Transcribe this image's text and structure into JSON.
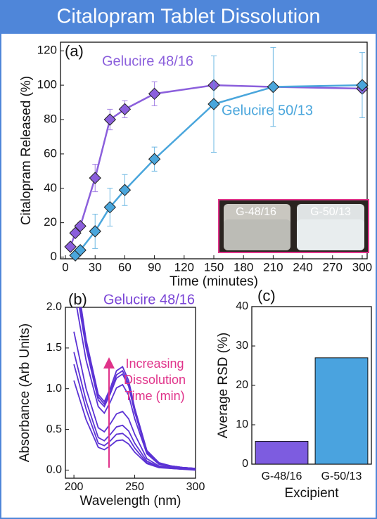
{
  "figure_title": "Citalopram Tablet Dissolution",
  "chart_data": [
    {
      "type": "line",
      "panel_label": "(a)",
      "x_label": "Time (minutes)",
      "y_label": "Citalopram Released (%)",
      "xlim": [
        -5,
        305
      ],
      "xticks": [
        0,
        30,
        60,
        90,
        120,
        150,
        180,
        210,
        240,
        270,
        300
      ],
      "ylim": [
        -1,
        125
      ],
      "yticks": [
        0,
        20,
        40,
        60,
        80,
        100,
        120
      ],
      "marker": "diamond",
      "series": [
        {
          "name": "Gelucire 48/16",
          "color": "#8b5fdc",
          "x": [
            5,
            10,
            15,
            30,
            45,
            60,
            90,
            150,
            210,
            300
          ],
          "values": [
            6,
            14,
            18,
            46,
            80,
            86,
            95,
            100,
            99,
            98
          ],
          "errors": [
            1,
            1,
            2,
            8,
            6,
            5,
            7,
            2,
            1,
            2
          ]
        },
        {
          "name": "Gelucire 50/13",
          "color": "#4aa6dc",
          "x": [
            10,
            15,
            30,
            45,
            60,
            90,
            150,
            210,
            300
          ],
          "values": [
            1,
            4,
            15,
            29,
            39,
            57,
            89,
            99,
            100
          ],
          "errors": [
            1,
            2,
            10,
            11,
            9,
            7,
            28,
            23,
            19
          ]
        }
      ],
      "inset_labels": [
        "G-48/16",
        "G-50/13"
      ]
    },
    {
      "type": "line",
      "panel_label": "(b)",
      "annotation": "Gelucire 48/16",
      "annotation_lines": [
        "Increasing",
        "Dissolution",
        "Time (min)"
      ],
      "x_label": "Wavelength (nm)",
      "y_label": "Absorbance (Arb Units)",
      "xlim": [
        193,
        300
      ],
      "xticks": [
        200,
        250,
        300
      ],
      "ylim": [
        -0.1,
        2.0
      ],
      "yticks": [
        {
          "value": 0,
          "label": "0.0"
        },
        0.5,
        {
          "value": 1,
          "label": "1.0"
        },
        1.5,
        {
          "value": 2,
          "label": "2.0"
        }
      ],
      "x": [
        200,
        210,
        220,
        225,
        230,
        235,
        240,
        245,
        250,
        260,
        270,
        280,
        290,
        300
      ],
      "series": [
        {
          "color": "#5b32d4",
          "values": [
            1.1,
            0.62,
            0.28,
            0.25,
            0.3,
            0.36,
            0.37,
            0.32,
            0.22,
            0.08,
            0.03,
            0.02,
            0.01,
            0.0
          ]
        },
        {
          "color": "#5b32d4",
          "values": [
            1.3,
            0.75,
            0.33,
            0.3,
            0.36,
            0.44,
            0.45,
            0.39,
            0.27,
            0.09,
            0.04,
            0.02,
            0.01,
            0.01
          ]
        },
        {
          "color": "#5b32d4",
          "values": [
            1.45,
            0.85,
            0.4,
            0.36,
            0.44,
            0.53,
            0.55,
            0.48,
            0.33,
            0.11,
            0.04,
            0.03,
            0.02,
            0.01
          ]
        },
        {
          "color": "#5b32d4",
          "values": [
            1.7,
            1.0,
            0.52,
            0.47,
            0.57,
            0.69,
            0.72,
            0.63,
            0.44,
            0.14,
            0.05,
            0.03,
            0.02,
            0.01
          ]
        },
        {
          "color": "#5b32d4",
          "values": [
            2.2,
            1.35,
            0.78,
            0.7,
            0.84,
            1.01,
            1.05,
            0.92,
            0.63,
            0.2,
            0.07,
            0.04,
            0.03,
            0.02
          ]
        },
        {
          "color": "#5b32d4",
          "values": [
            2.4,
            1.5,
            0.86,
            0.78,
            0.94,
            1.13,
            1.18,
            1.03,
            0.71,
            0.22,
            0.08,
            0.05,
            0.03,
            0.02
          ]
        },
        {
          "color": "#5b32d4",
          "values": [
            2.5,
            1.55,
            0.9,
            0.81,
            0.97,
            1.17,
            1.22,
            1.06,
            0.73,
            0.23,
            0.08,
            0.05,
            0.03,
            0.02
          ]
        },
        {
          "color": "#5b32d4",
          "values": [
            2.6,
            1.6,
            0.93,
            0.84,
            1.01,
            1.22,
            1.27,
            1.1,
            0.76,
            0.24,
            0.09,
            0.05,
            0.03,
            0.02
          ]
        }
      ]
    },
    {
      "type": "bar",
      "panel_label": "(c)",
      "x_label": "Excipient",
      "y_label": "Average RSD (%)",
      "categories": [
        "G-48/16",
        "G-50/13"
      ],
      "values": [
        5.8,
        27
      ],
      "colors": [
        "#7d5ce0",
        "#4aa3df"
      ],
      "ylim": [
        0,
        40
      ],
      "yticks": [
        0,
        10,
        20,
        30,
        40
      ]
    }
  ]
}
